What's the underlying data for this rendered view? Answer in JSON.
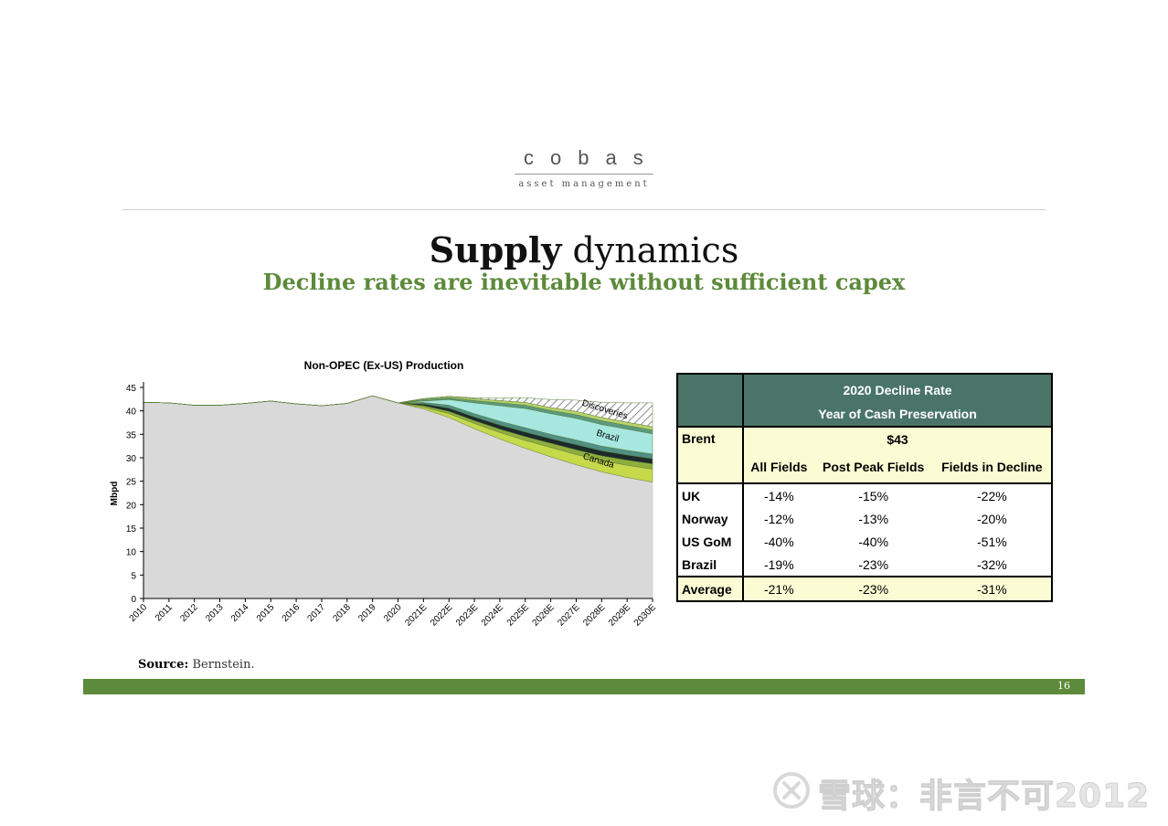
{
  "logo": {
    "name": "cobas",
    "tagline": "asset management"
  },
  "slide": {
    "title_bold": "Supply",
    "title_light": "dynamics",
    "subtitle": "Decline rates are inevitable without sufficient capex"
  },
  "chart_data": {
    "type": "area",
    "title": "Non-OPEC (Ex-US) Production",
    "ylabel": "Mbpd",
    "xlabel": "",
    "ylim": [
      0,
      45
    ],
    "yticks": [
      0,
      5,
      10,
      15,
      20,
      25,
      30,
      35,
      40,
      45
    ],
    "x": [
      "2010",
      "2011",
      "2012",
      "2013",
      "2014",
      "2015",
      "2016",
      "2017",
      "2018",
      "2019",
      "2020",
      "2021E",
      "2022E",
      "2023E",
      "2024E",
      "2025E",
      "2026E",
      "2027E",
      "2028E",
      "2029E",
      "2030E"
    ],
    "stacked": true,
    "series": [
      {
        "name": "",
        "color": "#d9d9d9",
        "values": [
          41.8,
          41.7,
          41.2,
          41.2,
          41.6,
          42.1,
          41.5,
          41.1,
          41.6,
          43.2,
          41.7,
          40.4,
          38.6,
          36.2,
          34.0,
          32.0,
          30.2,
          28.5,
          27.0,
          25.8,
          24.8
        ]
      },
      {
        "name": "Canada",
        "color": "#c5d94b",
        "values": [
          0,
          0,
          0,
          0,
          0,
          0,
          0,
          0,
          0,
          0,
          0,
          0.4,
          0.8,
          1.1,
          1.4,
          1.7,
          2.0,
          2.2,
          2.4,
          2.6,
          2.8
        ]
      },
      {
        "name": "",
        "color": "#8fae3e",
        "values": [
          0,
          0,
          0,
          0,
          0,
          0,
          0,
          0,
          0,
          0,
          0,
          0.3,
          0.5,
          0.6,
          0.7,
          0.8,
          0.9,
          1.0,
          1.0,
          1.1,
          1.1
        ]
      },
      {
        "name": "",
        "color": "#1c2a2a",
        "values": [
          0,
          0,
          0,
          0,
          0,
          0,
          0,
          0,
          0,
          0,
          0,
          0.4,
          0.7,
          0.8,
          0.9,
          1.0,
          1.0,
          1.1,
          1.1,
          1.1,
          1.1
        ]
      },
      {
        "name": "",
        "color": "#4f8f84",
        "values": [
          0,
          0,
          0,
          0,
          0,
          0,
          0,
          0,
          0,
          0,
          0,
          0.3,
          0.6,
          0.7,
          0.8,
          0.9,
          0.9,
          1.0,
          1.0,
          1.0,
          1.0
        ]
      },
      {
        "name": "Brazil",
        "color": "#a6e8df",
        "values": [
          0,
          0,
          0,
          0,
          0,
          0,
          0,
          0,
          0,
          0,
          0,
          0.3,
          1.2,
          2.3,
          3.3,
          4.1,
          4.4,
          4.6,
          4.6,
          4.5,
          4.3
        ]
      },
      {
        "name": "",
        "color": "#5a9a80",
        "values": [
          0,
          0,
          0,
          0,
          0,
          0,
          0,
          0,
          0,
          0,
          0,
          0.3,
          0.4,
          0.5,
          0.6,
          0.7,
          0.7,
          0.8,
          0.8,
          0.8,
          0.8
        ]
      },
      {
        "name": "",
        "color": "#b8d26a",
        "values": [
          0,
          0,
          0,
          0,
          0,
          0,
          0,
          0,
          0,
          0,
          0,
          0.2,
          0.3,
          0.4,
          0.5,
          0.6,
          0.6,
          0.7,
          0.7,
          0.7,
          0.7
        ]
      },
      {
        "name": "Discoveries",
        "color": "hatch",
        "values": [
          0,
          0,
          0,
          0,
          0,
          0,
          0,
          0,
          0,
          0,
          0,
          0,
          0,
          0.2,
          0.5,
          1.0,
          1.7,
          2.4,
          3.2,
          4.1,
          5.1
        ]
      }
    ],
    "annotations": [
      "Discoveries",
      "Brazil",
      "Canada"
    ]
  },
  "table": {
    "header_line1": "2020 Decline Rate",
    "header_line2": "Year of Cash Preservation",
    "price_label": "Brent",
    "price_value": "$43",
    "columns": [
      "All Fields",
      "Post Peak Fields",
      "Fields in Decline"
    ],
    "rows": [
      {
        "label": "UK",
        "values": [
          "-14%",
          "-15%",
          "-22%"
        ]
      },
      {
        "label": "Norway",
        "values": [
          "-12%",
          "-13%",
          "-20%"
        ]
      },
      {
        "label": "US GoM",
        "values": [
          "-40%",
          "-40%",
          "-51%"
        ]
      },
      {
        "label": "Brazil",
        "values": [
          "-19%",
          "-23%",
          "-32%"
        ]
      }
    ],
    "average": {
      "label": "Average",
      "values": [
        "-21%",
        "-23%",
        "-31%"
      ]
    }
  },
  "source": {
    "label": "Source:",
    "text": "Bernstein."
  },
  "page_number": "16",
  "watermark": "雪球：非言不可2012"
}
